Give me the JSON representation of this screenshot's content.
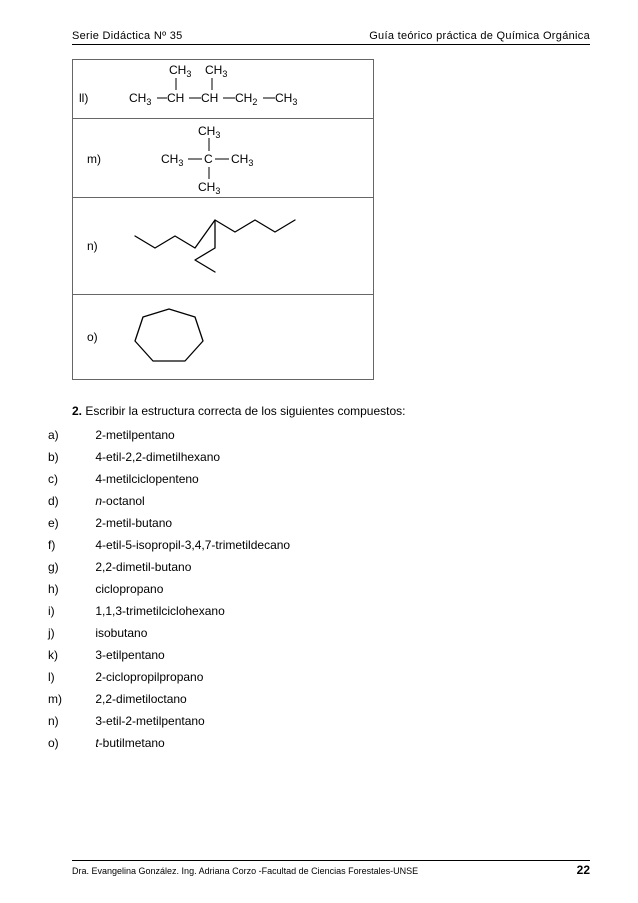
{
  "header": {
    "left": "Serie Didáctica Nº 35",
    "right": "Guía teórico práctica de Química Orgánica"
  },
  "structures": {
    "ll": {
      "label": "ll)",
      "top_left": "CH",
      "top_left_sub": "3",
      "top_right": "CH",
      "top_right_sub": "3",
      "chain": [
        {
          "txt": "CH",
          "sub": "3"
        },
        {
          "txt": "CH",
          "sub": ""
        },
        {
          "txt": "CH",
          "sub": ""
        },
        {
          "txt": "CH",
          "sub": "2"
        },
        {
          "txt": "CH",
          "sub": "3"
        }
      ]
    },
    "m": {
      "label": "m)",
      "top": "CH",
      "top_sub": "3",
      "left": "CH",
      "left_sub": "3",
      "center": "C",
      "right": "CH",
      "right_sub": "3",
      "bottom": "CH",
      "bottom_sub": "3"
    },
    "n": {
      "label": "n)"
    },
    "o": {
      "label": "o)"
    }
  },
  "question2": {
    "num": "2.",
    "text": " Escribir la estructura correcta de los siguientes compuestos:",
    "items": [
      {
        "label": "a)",
        "text": "2-metilpentano"
      },
      {
        "label": "b)",
        "text": "4-etil-2,2-dimetilhexano"
      },
      {
        "label": "c)",
        "text": "4-metilciclopenteno"
      },
      {
        "label": "d)",
        "pre": "n",
        "text": "-octanol"
      },
      {
        "label": "e)",
        "text": "2-metil-butano"
      },
      {
        "label": "f)",
        "text": "4-etil-5-isopropil-3,4,7-trimetildecano"
      },
      {
        "label": "g)",
        "text": "2,2-dimetil-butano"
      },
      {
        "label": "h)",
        "text": "ciclopropano"
      },
      {
        "label": "i)",
        "text": "1,1,3-trimetilciclohexano"
      },
      {
        "label": "j)",
        "text": "isobutano"
      },
      {
        "label": "k)",
        "text": "3-etilpentano"
      },
      {
        "label": "l)",
        "text": "2-ciclopropilpropano"
      },
      {
        "label": "m)",
        "text": "2,2-dimetiloctano"
      },
      {
        "label": "n)",
        "text": "3-etil-2-metilpentano"
      },
      {
        "label": "o)",
        "pre": "t",
        "text": "-butilmetano"
      }
    ]
  },
  "footer": {
    "text": "Dra. Evangelina González. Ing. Adriana Corzo -Facultad de Ciencias Forestales-UNSE",
    "page": "22"
  },
  "colors": {
    "text": "#000000",
    "border": "#666666",
    "bg": "#ffffff"
  }
}
